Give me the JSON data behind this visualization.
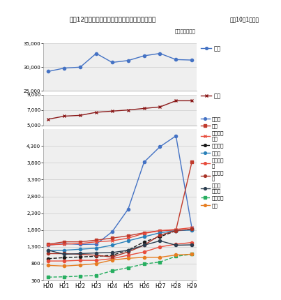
{
  "title": "上位12か国（地域）の日系企業（拠点）数の推移",
  "subtitle_right": "各年10月1日現在",
  "unit_label": "（単位：拠点）",
  "x_labels": [
    "H20",
    "H21",
    "H22",
    "H23",
    "H24",
    "H25",
    "H26",
    "H27",
    "H28",
    "H29"
  ],
  "series": {
    "中国": {
      "values": [
        29100,
        29800,
        30000,
        32900,
        31000,
        31400,
        32400,
        32900,
        31600,
        31500
      ],
      "color": "#4472C4",
      "marker": "o",
      "linestyle": "-",
      "panel": 0,
      "legend_label": "中国"
    },
    "米国": {
      "values": [
        5800,
        6200,
        6300,
        6700,
        6850,
        7000,
        7200,
        7400,
        8200,
        8200
      ],
      "color": "#8B1A1A",
      "marker": "x",
      "linestyle": "-",
      "panel": 1,
      "legend_label": "米国"
    },
    "インド": {
      "values": [
        1350,
        1400,
        1370,
        1380,
        1750,
        2420,
        3820,
        4280,
        4600,
        1850
      ],
      "color": "#4472C4",
      "marker": "o",
      "linestyle": "-",
      "panel": 2,
      "legend_label": "インド"
    },
    "タイ": {
      "values": [
        1380,
        1450,
        1450,
        1500,
        1560,
        1630,
        1720,
        1780,
        1800,
        3830
      ],
      "color": "#C0392B",
      "marker": "s",
      "linestyle": "-",
      "panel": 2,
      "legend_label": "タイ"
    },
    "インドネシア": {
      "values": [
        1360,
        1380,
        1400,
        1450,
        1480,
        1560,
        1700,
        1780,
        1820,
        1870
      ],
      "color": "#E74C3C",
      "marker": "x",
      "linestyle": "-",
      "panel": 2,
      "legend_label": "インドネ\nシア"
    },
    "ベトナム": {
      "values": [
        950,
        980,
        1000,
        1020,
        1050,
        1200,
        1450,
        1600,
        1780,
        1820
      ],
      "color": "#1A1A1A",
      "marker": "o",
      "linestyle": "--",
      "panel": 2,
      "legend_label": "ベトナム"
    },
    "ドイツ": {
      "values": [
        1190,
        1200,
        1230,
        1260,
        1350,
        1480,
        1600,
        1720,
        1780,
        1800
      ],
      "color": "#2980B9",
      "marker": "o",
      "linestyle": "-",
      "panel": 2,
      "legend_label": "ドイツ"
    },
    "フィリピン": {
      "values": [
        880,
        880,
        900,
        900,
        950,
        1050,
        1150,
        1300,
        1380,
        1430
      ],
      "color": "#E74C3C",
      "marker": "o",
      "linestyle": "-",
      "panel": 2,
      "legend_label": "フィリピ\nン"
    },
    "マレーシア": {
      "values": [
        1100,
        1100,
        1080,
        1050,
        1000,
        1150,
        1350,
        1650,
        1780,
        1830
      ],
      "color": "#A93226",
      "marker": "o",
      "linestyle": "-",
      "panel": 2,
      "legend_label": "マレーシ\nア"
    },
    "シンガポール": {
      "values": [
        1200,
        1080,
        1100,
        1120,
        1130,
        1200,
        1350,
        1480,
        1350,
        1360
      ],
      "color": "#2C3E50",
      "marker": "o",
      "linestyle": "-",
      "panel": 2,
      "legend_label": "シンガ\nポール"
    },
    "メキシコ": {
      "values": [
        400,
        410,
        430,
        450,
        590,
        680,
        790,
        850,
        1020,
        1080
      ],
      "color": "#27AE60",
      "marker": "s",
      "linestyle": "--",
      "panel": 2,
      "legend_label": "メキシコ"
    },
    "台湾": {
      "values": [
        750,
        730,
        760,
        800,
        910,
        960,
        990,
        990,
        1060,
        1080
      ],
      "color": "#E67E22",
      "marker": "o",
      "linestyle": "-",
      "panel": 2,
      "legend_label": "台湾"
    }
  },
  "panel0": {
    "ylim": [
      25000,
      35000
    ],
    "yticks": [
      25000,
      30000,
      35000
    ]
  },
  "panel1": {
    "ylim": [
      5000,
      9000
    ],
    "yticks": [
      5000,
      7000,
      9000
    ]
  },
  "panel2": {
    "ylim": [
      300,
      4800
    ],
    "yticks": [
      300,
      800,
      1300,
      1800,
      2300,
      2800,
      3300,
      3800,
      4300
    ]
  },
  "bg_color": "#FFFFFF",
  "panel_bg": "#EFEFEF",
  "grid_color": "#CCCCCC"
}
